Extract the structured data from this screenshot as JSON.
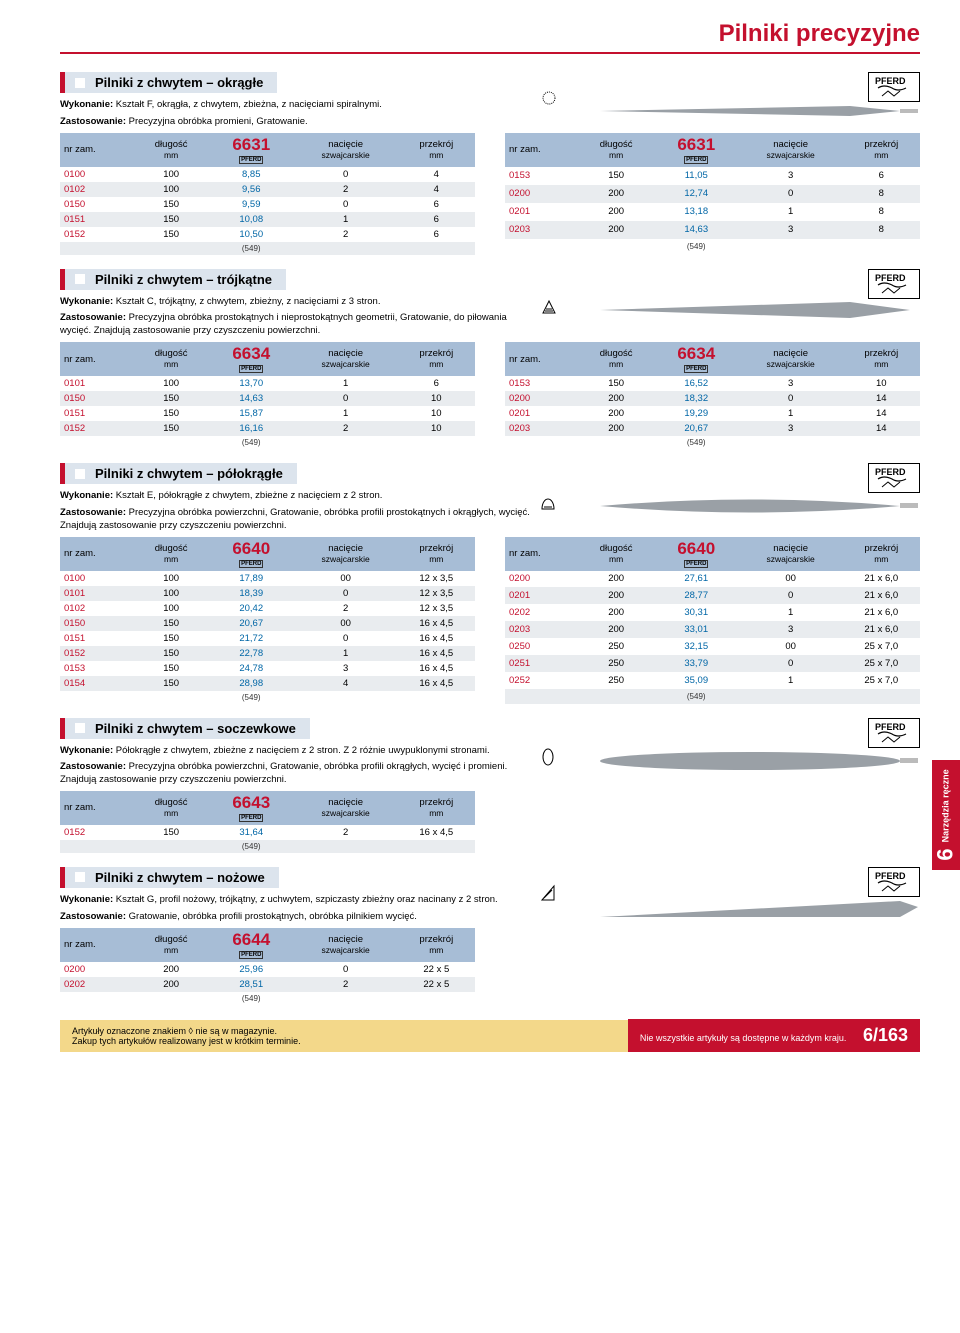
{
  "page_title": "Pilniki precyzyjne",
  "brand": "PFERD",
  "columns": {
    "code": "nr zam.",
    "length": "długość",
    "length_unit": "mm",
    "cut": "nacięcie",
    "cut_sub": "szwajcarskie",
    "cross": "przekrój",
    "cross_unit": "mm"
  },
  "sections": [
    {
      "title": "Pilniki z chwytem – okrągłe",
      "wykonanie": "Wykonanie: Kształt F, okrągła, z chwytem, zbieżna, z nacięciami spiralnymi.",
      "zastosowanie": "Zastosowanie: Precyzyjna obróbka promieni, Gratowanie.",
      "artno": "6631",
      "footnote": "(549)",
      "tables": [
        {
          "rows": [
            [
              "0100",
              "100",
              "8,85",
              "0",
              "4"
            ],
            [
              "0102",
              "100",
              "9,56",
              "2",
              "4"
            ],
            [
              "0150",
              "150",
              "9,59",
              "0",
              "6"
            ],
            [
              "0151",
              "150",
              "10,08",
              "1",
              "6"
            ],
            [
              "0152",
              "150",
              "10,50",
              "2",
              "6"
            ]
          ]
        },
        {
          "rows": [
            [
              "0153",
              "150",
              "11,05",
              "3",
              "6"
            ],
            [
              "0200",
              "200",
              "12,74",
              "0",
              "8"
            ],
            [
              "0201",
              "200",
              "13,18",
              "1",
              "8"
            ],
            [
              "0203",
              "200",
              "14,63",
              "3",
              "8"
            ]
          ]
        }
      ]
    },
    {
      "title": "Pilniki z chwytem – trójkątne",
      "wykonanie": "Wykonanie: Kształt C, trójkątny, z chwytem, zbieżny, z nacięciami z 3 stron.",
      "zastosowanie": "Zastosowanie: Precyzyjna obróbka prostokątnych i nieprostokątnych geometrii, Gratowanie, do piłowania wycięć. Znajdują zastosowanie przy czyszczeniu powierzchni.",
      "artno": "6634",
      "footnote": "(549)",
      "tables": [
        {
          "rows": [
            [
              "0101",
              "100",
              "13,70",
              "1",
              "6"
            ],
            [
              "0150",
              "150",
              "14,63",
              "0",
              "10"
            ],
            [
              "0151",
              "150",
              "15,87",
              "1",
              "10"
            ],
            [
              "0152",
              "150",
              "16,16",
              "2",
              "10"
            ]
          ]
        },
        {
          "rows": [
            [
              "0153",
              "150",
              "16,52",
              "3",
              "10"
            ],
            [
              "0200",
              "200",
              "18,32",
              "0",
              "14"
            ],
            [
              "0201",
              "200",
              "19,29",
              "1",
              "14"
            ],
            [
              "0203",
              "200",
              "20,67",
              "3",
              "14"
            ]
          ]
        }
      ]
    },
    {
      "title": "Pilniki z chwytem – półokrągłe",
      "wykonanie": "Wykonanie: Kształt E, półokrągłe z chwytem, zbieżne z nacięciem z 2 stron.",
      "zastosowanie": "Zastosowanie: Precyzyjna obróbka powierzchni, Gratowanie, obróbka profili prostokątnych i okrągłych, wycięć. Znajdują zastosowanie przy czyszczeniu powierzchni.",
      "artno": "6640",
      "footnote": "(549)",
      "tables": [
        {
          "rows": [
            [
              "0100",
              "100",
              "17,89",
              "00",
              "12 x 3,5"
            ],
            [
              "0101",
              "100",
              "18,39",
              "0",
              "12 x 3,5"
            ],
            [
              "0102",
              "100",
              "20,42",
              "2",
              "12 x 3,5"
            ],
            [
              "0150",
              "150",
              "20,67",
              "00",
              "16 x 4,5"
            ],
            [
              "0151",
              "150",
              "21,72",
              "0",
              "16 x 4,5"
            ],
            [
              "0152",
              "150",
              "22,78",
              "1",
              "16 x 4,5"
            ],
            [
              "0153",
              "150",
              "24,78",
              "3",
              "16 x 4,5"
            ],
            [
              "0154",
              "150",
              "28,98",
              "4",
              "16 x 4,5"
            ]
          ]
        },
        {
          "rows": [
            [
              "0200",
              "200",
              "27,61",
              "00",
              "21 x 6,0"
            ],
            [
              "0201",
              "200",
              "28,77",
              "0",
              "21 x 6,0"
            ],
            [
              "0202",
              "200",
              "30,31",
              "1",
              "21 x 6,0"
            ],
            [
              "0203",
              "200",
              "33,01",
              "3",
              "21 x 6,0"
            ],
            [
              "0250",
              "250",
              "32,15",
              "00",
              "25 x 7,0"
            ],
            [
              "0251",
              "250",
              "33,79",
              "0",
              "25 x 7,0"
            ],
            [
              "0252",
              "250",
              "35,09",
              "1",
              "25 x 7,0"
            ]
          ]
        }
      ]
    },
    {
      "title": "Pilniki z chwytem – soczewkowe",
      "wykonanie": "Wykonanie: Półokrągłe z chwytem, zbieżne z nacięciem z 2 stron. Z 2 różnie uwypuklonymi stronami.",
      "zastosowanie": "Zastosowanie: Precyzyjna obróbka powierzchni, Gratowanie, obróbka profili okrągłych, wycięć i promieni. Znajdują zastosowanie przy czyszczeniu powierzchni.",
      "artno": "6643",
      "footnote": "(549)",
      "tables": [
        {
          "rows": [
            [
              "0152",
              "150",
              "31,64",
              "2",
              "16 x 4,5"
            ]
          ]
        }
      ]
    },
    {
      "title": "Pilniki z chwytem – nożowe",
      "wykonanie": "Wykonanie: Kształt G, profil nożowy, trójkątny, z uchwytem, szpiczasty zbieżny oraz nacinany z 2 stron.",
      "zastosowanie": "Zastosowanie: Gratowanie, obróbka profili prostokątnych, obróbka pilnikiem wycięć.",
      "artno": "6644",
      "footnote": "(549)",
      "tables": [
        {
          "rows": [
            [
              "0200",
              "200",
              "25,96",
              "0",
              "22 x 5"
            ],
            [
              "0202",
              "200",
              "28,51",
              "2",
              "22 x 5"
            ]
          ]
        }
      ]
    }
  ],
  "side_tab": {
    "num": "6",
    "label": "Narzędzia ręczne"
  },
  "footer_left_1": "Artykuły oznaczone znakiem ◊ nie są w magazynie.",
  "footer_left_2": "Zakup tych artykułów realizowany jest w krótkim terminie.",
  "footer_right": "Nie wszystkie artykuły są dostępne w każdym kraju.",
  "page_number": "6/163"
}
